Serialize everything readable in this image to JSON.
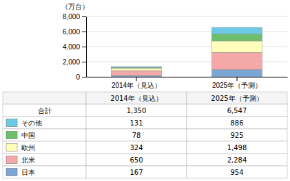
{
  "chart_data": {
    "type": "bar",
    "stacked": true,
    "grid": true,
    "legend": "bottom",
    "ylabel": "（万台）",
    "categories": [
      "2014年（見込）",
      "2025年（予測）"
    ],
    "series": [
      {
        "name": "日本",
        "color": "#7ba7d4",
        "values": [
          167,
          954
        ],
        "value_labels": [
          "167",
          "954"
        ]
      },
      {
        "name": "北米",
        "color": "#f4a9a8",
        "values": [
          650,
          2284
        ],
        "value_labels": [
          "650",
          "2,284"
        ]
      },
      {
        "name": "欧州",
        "color": "#ffffbb",
        "values": [
          324,
          1498
        ],
        "value_labels": [
          "324",
          "1,498"
        ]
      },
      {
        "name": "中国",
        "color": "#6dbf6d",
        "values": [
          78,
          925
        ],
        "value_labels": [
          "78",
          "925"
        ]
      },
      {
        "name": "その他",
        "color": "#6ecae4",
        "values": [
          131,
          886
        ],
        "value_labels": [
          "131",
          "886"
        ]
      }
    ],
    "totals": {
      "name": "合計",
      "values": [
        1350,
        6547
      ],
      "value_labels": [
        "1,350",
        "6,547"
      ]
    },
    "ylim": [
      0,
      8000
    ],
    "yticks": [
      0,
      {
        "value": 2000,
        "label": "2,000"
      },
      {
        "value": 4000,
        "label": "4,000"
      },
      {
        "value": 6000,
        "label": "6,000"
      },
      {
        "value": 8000,
        "label": "8,000"
      }
    ]
  }
}
